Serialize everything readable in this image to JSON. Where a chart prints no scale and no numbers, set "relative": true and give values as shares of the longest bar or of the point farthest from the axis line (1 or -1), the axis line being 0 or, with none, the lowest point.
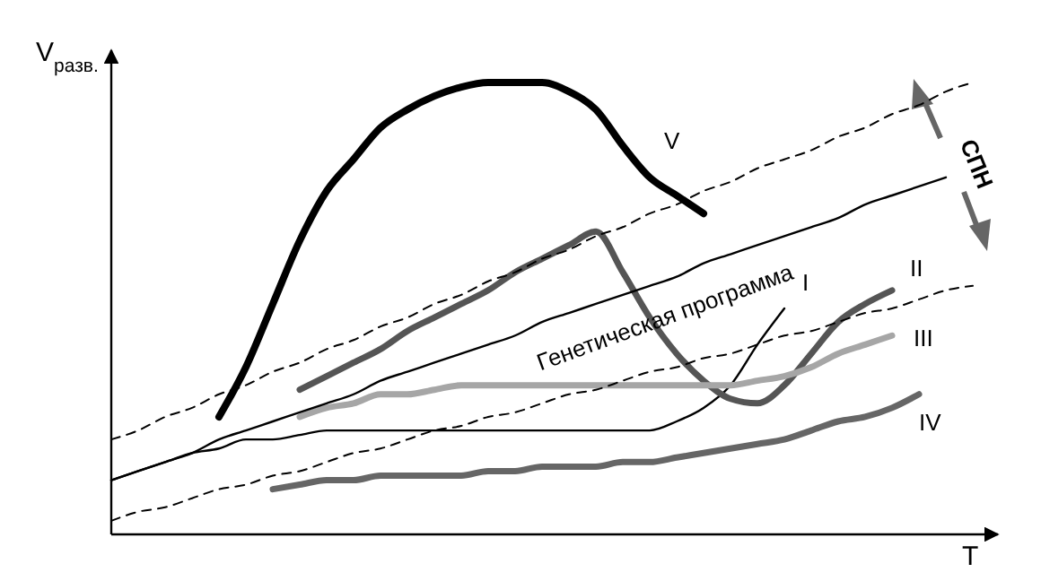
{
  "chart_data": {
    "type": "line",
    "relative": true,
    "xlabel": "T",
    "ylabel": "V$_{разв.}$",
    "categories": [
      null,
      null,
      null,
      null,
      null,
      null,
      null,
      null,
      null,
      null,
      null,
      null,
      null,
      null,
      null,
      null,
      null,
      null,
      null,
      null,
      null,
      null,
      null,
      null,
      null,
      null,
      null,
      null,
      null,
      null,
      null,
      null,
      null
    ],
    "annotations": [
      "Генетическая программа",
      "СПН"
    ],
    "series": [
      {
        "name": "I",
        "color": "#000000",
        "values": [
          0.12,
          0.14,
          0.16,
          0.18,
          0.19,
          0.21,
          0.21,
          0.22,
          0.23,
          0.23,
          0.23,
          0.23,
          0.23,
          0.23,
          0.23,
          0.23,
          0.23,
          0.23,
          0.23,
          0.23,
          0.23,
          0.25,
          0.28,
          0.33,
          0.42,
          0.5,
          null,
          null,
          null,
          null,
          null,
          null,
          null
        ]
      },
      {
        "name": "II",
        "color": "#555555",
        "values": [
          null,
          null,
          null,
          null,
          null,
          null,
          null,
          0.32,
          0.35,
          0.38,
          0.41,
          0.45,
          0.48,
          0.51,
          0.54,
          0.58,
          0.61,
          0.64,
          0.67,
          0.58,
          0.48,
          0.4,
          0.34,
          0.3,
          0.29,
          0.33,
          0.4,
          0.47,
          0.51,
          0.54,
          null,
          null,
          null
        ]
      },
      {
        "name": "III",
        "color": "#a6a6a6",
        "values": [
          null,
          null,
          null,
          null,
          null,
          null,
          null,
          0.26,
          0.28,
          0.29,
          0.31,
          0.31,
          0.32,
          0.33,
          0.33,
          0.33,
          0.33,
          0.33,
          0.33,
          0.33,
          0.33,
          0.33,
          0.33,
          0.33,
          0.34,
          0.35,
          0.37,
          0.4,
          0.42,
          0.44,
          null,
          null,
          null
        ]
      },
      {
        "name": "IV",
        "color": "#666666",
        "values": [
          null,
          null,
          null,
          null,
          null,
          null,
          0.1,
          0.11,
          0.12,
          0.12,
          0.13,
          0.13,
          0.13,
          0.13,
          0.14,
          0.14,
          0.15,
          0.15,
          0.15,
          0.16,
          0.16,
          0.17,
          0.18,
          0.19,
          0.2,
          0.21,
          0.23,
          0.25,
          0.26,
          0.28,
          0.31,
          null,
          null
        ]
      },
      {
        "name": "V",
        "color": "#000000",
        "values": [
          null,
          null,
          null,
          null,
          0.26,
          0.37,
          0.51,
          0.65,
          0.76,
          0.83,
          0.9,
          0.94,
          0.97,
          0.99,
          1.0,
          1.0,
          1.0,
          0.98,
          0.94,
          0.86,
          0.79,
          0.75,
          0.71,
          null,
          null,
          null,
          null,
          null,
          null,
          null,
          null,
          null,
          null
        ]
      },
      {
        "color": "#000000",
        "values": [
          0.12,
          0.14,
          0.16,
          0.18,
          0.21,
          0.23,
          0.25,
          0.27,
          0.29,
          0.31,
          0.34,
          0.36,
          0.38,
          0.4,
          0.42,
          0.44,
          0.47,
          0.49,
          0.51,
          0.53,
          0.55,
          0.57,
          0.6,
          0.62,
          0.64,
          0.66,
          0.68,
          0.7,
          0.73,
          0.75,
          0.77,
          0.79,
          null
        ]
      },
      {
        "color": "#000000",
        "line_style": "dashed",
        "values": [
          0.21,
          0.23,
          0.26,
          0.28,
          0.31,
          0.33,
          0.36,
          0.38,
          0.41,
          0.43,
          0.46,
          0.48,
          0.51,
          0.53,
          0.56,
          0.58,
          0.61,
          0.63,
          0.66,
          0.68,
          0.71,
          0.73,
          0.76,
          0.78,
          0.81,
          0.83,
          0.85,
          0.88,
          0.9,
          0.93,
          0.95,
          0.98,
          1.0
        ]
      },
      {
        "color": "#000000",
        "line_style": "dashed",
        "values": [
          0.03,
          0.05,
          0.06,
          0.08,
          0.1,
          0.11,
          0.13,
          0.14,
          0.16,
          0.18,
          0.19,
          0.21,
          0.23,
          0.24,
          0.26,
          0.27,
          0.29,
          0.31,
          0.32,
          0.34,
          0.36,
          0.37,
          0.39,
          0.4,
          0.42,
          0.44,
          0.45,
          0.47,
          0.49,
          0.5,
          0.52,
          0.54,
          0.55
        ]
      }
    ]
  }
}
